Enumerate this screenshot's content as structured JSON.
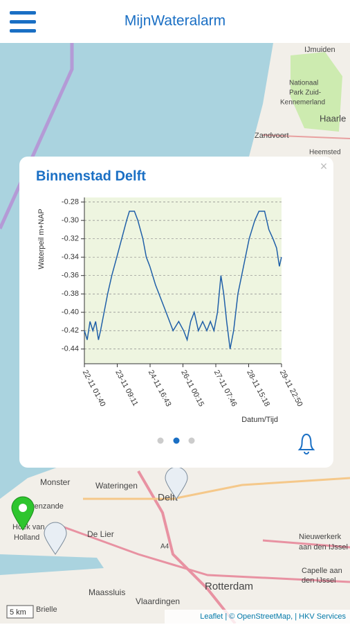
{
  "header": {
    "title": "MijnWateralarm"
  },
  "map": {
    "labels": [
      "IJmuiden",
      "Nationaal",
      "Park Zuid-",
      "Kennemerland",
      "Haarle",
      "Zandvoort",
      "Heemsted",
      "Monster",
      "Wateringen",
      "avenzande",
      "Hoek van",
      "Holland",
      "De Lier",
      "Delft",
      "A4",
      "Nieuwerkerk",
      "aan den IJssel",
      "Capelle aan",
      "den IJssel",
      "Maassluis",
      "Vlaardingen",
      "Rotterdam",
      "Brielle"
    ],
    "scale": "5 km",
    "attribution": "Leaflet | © OpenStreetMap, | HKV Services"
  },
  "popup": {
    "close": "×"
  },
  "chart_data": {
    "type": "line",
    "title": "Binnenstad Delft",
    "y_label": "Waterpeil m+NAP",
    "x_label": "Datum/Tijd",
    "color": "#1f5fa8",
    "grid": true,
    "x": [
      0,
      2.7,
      5.4,
      8.1,
      10.8,
      13.5,
      15.5,
      18.9,
      22.3,
      26.3,
      31.1,
      35.8,
      40.5,
      43.2,
      48.0,
      51.3,
      56.1,
      59.4,
      62.8,
      68.2,
      78.4,
      85.1,
      90.5,
      95.2,
      98.6,
      102.0,
      105.4,
      109.4,
      113.5,
      117.5,
      120.9,
      124.3,
      127.7,
      131.0,
      133.7,
      136.5,
      139.8,
      143.2,
      147.3,
      152.7,
      158.1,
      163.5,
      167.5,
      172.9,
      177.0,
      181.0,
      184.4,
      187.1,
      189.1
    ],
    "values": [
      -0.42,
      -0.43,
      -0.41,
      -0.42,
      -0.41,
      -0.43,
      -0.42,
      -0.4,
      -0.38,
      -0.36,
      -0.34,
      -0.32,
      -0.3,
      -0.29,
      -0.29,
      -0.3,
      -0.32,
      -0.34,
      -0.35,
      -0.37,
      -0.4,
      -0.42,
      -0.41,
      -0.42,
      -0.43,
      -0.41,
      -0.4,
      -0.42,
      -0.41,
      -0.42,
      -0.41,
      -0.42,
      -0.4,
      -0.36,
      -0.38,
      -0.41,
      -0.44,
      -0.42,
      -0.38,
      -0.35,
      -0.32,
      -0.3,
      -0.29,
      -0.29,
      -0.31,
      -0.32,
      -0.33,
      -0.35,
      -0.34
    ],
    "xlim": [
      0,
      189.15
    ],
    "xticks": [
      {
        "value": 0,
        "label": "22-11 01:40"
      },
      {
        "value": 31.525,
        "label": "23-11 09:11"
      },
      {
        "value": 63.05,
        "label": "24-11 16:43"
      },
      {
        "value": 94.575,
        "label": "26-11 00:15"
      },
      {
        "value": 126.1,
        "label": "27-11 07:46"
      },
      {
        "value": 157.625,
        "label": "28-11 15:18"
      },
      {
        "value": 189.15,
        "label": "29-11 22:50"
      }
    ],
    "ylim": [
      -0.456,
      -0.275
    ],
    "yticks": [
      -0.28,
      {
        "value": -0.3,
        "label": "-0.30"
      },
      -0.32,
      -0.34,
      -0.36,
      -0.38,
      {
        "value": -0.4,
        "label": "-0.40"
      },
      -0.42,
      -0.44
    ]
  }
}
